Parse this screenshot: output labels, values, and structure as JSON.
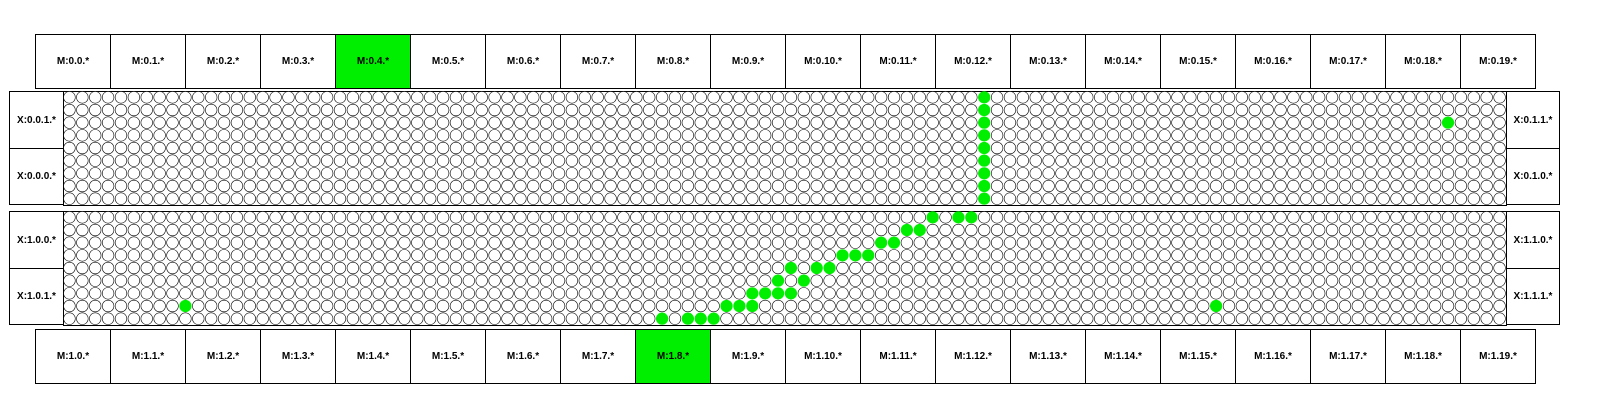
{
  "colors": {
    "active": "#00ee00",
    "dot_stroke": "#000000",
    "line": "#000000"
  },
  "top_modules": [
    "M:0.0.*",
    "M:0.1.*",
    "M:0.2.*",
    "M:0.3.*",
    "M:0.4.*",
    "M:0.5.*",
    "M:0.6.*",
    "M:0.7.*",
    "M:0.8.*",
    "M:0.9.*",
    "M:0.10.*",
    "M:0.11.*",
    "M:0.12.*",
    "M:0.13.*",
    "M:0.14.*",
    "M:0.15.*",
    "M:0.16.*",
    "M:0.17.*",
    "M:0.18.*",
    "M:0.19.*"
  ],
  "top_active": [
    4
  ],
  "bottom_modules": [
    "M:1.0.*",
    "M:1.1.*",
    "M:1.2.*",
    "M:1.3.*",
    "M:1.4.*",
    "M:1.5.*",
    "M:1.6.*",
    "M:1.7.*",
    "M:1.8.*",
    "M:1.9.*",
    "M:1.10.*",
    "M:1.11.*",
    "M:1.12.*",
    "M:1.13.*",
    "M:1.14.*",
    "M:1.15.*",
    "M:1.16.*",
    "M:1.17.*",
    "M:1.18.*",
    "M:1.19.*"
  ],
  "bottom_active": [
    8
  ],
  "panels": [
    {
      "left": [
        "X:0.0.1.*",
        "X:0.0.0.*"
      ],
      "right": [
        "X:0.1.1.*",
        "X:0.1.0.*"
      ]
    },
    {
      "left": [
        "X:1.0.0.*",
        "X:1.0.1.*"
      ],
      "right": [
        "X:1.1.0.*",
        "X:1.1.1.*"
      ]
    }
  ],
  "grid": {
    "cols": 112,
    "rows": 9
  },
  "hits": [
    {
      "panel": 0,
      "col": 71,
      "row": 0
    },
    {
      "panel": 0,
      "col": 71,
      "row": 1
    },
    {
      "panel": 0,
      "col": 71,
      "row": 2
    },
    {
      "panel": 0,
      "col": 71,
      "row": 3
    },
    {
      "panel": 0,
      "col": 71,
      "row": 4
    },
    {
      "panel": 0,
      "col": 71,
      "row": 5
    },
    {
      "panel": 0,
      "col": 71,
      "row": 6
    },
    {
      "panel": 0,
      "col": 71,
      "row": 7
    },
    {
      "panel": 0,
      "col": 71,
      "row": 8
    },
    {
      "panel": 0,
      "col": 107,
      "row": 2
    },
    {
      "panel": 1,
      "col": 67,
      "row": 0
    },
    {
      "panel": 1,
      "col": 69,
      "row": 0
    },
    {
      "panel": 1,
      "col": 70,
      "row": 0
    },
    {
      "panel": 1,
      "col": 65,
      "row": 1
    },
    {
      "panel": 1,
      "col": 66,
      "row": 1
    },
    {
      "panel": 1,
      "col": 63,
      "row": 2
    },
    {
      "panel": 1,
      "col": 64,
      "row": 2
    },
    {
      "panel": 1,
      "col": 60,
      "row": 3
    },
    {
      "panel": 1,
      "col": 61,
      "row": 3
    },
    {
      "panel": 1,
      "col": 62,
      "row": 3
    },
    {
      "panel": 1,
      "col": 56,
      "row": 4
    },
    {
      "panel": 1,
      "col": 58,
      "row": 4
    },
    {
      "panel": 1,
      "col": 59,
      "row": 4
    },
    {
      "panel": 1,
      "col": 55,
      "row": 5
    },
    {
      "panel": 1,
      "col": 57,
      "row": 5
    },
    {
      "panel": 1,
      "col": 53,
      "row": 6
    },
    {
      "panel": 1,
      "col": 54,
      "row": 6
    },
    {
      "panel": 1,
      "col": 55,
      "row": 6
    },
    {
      "panel": 1,
      "col": 56,
      "row": 6
    },
    {
      "panel": 1,
      "col": 51,
      "row": 7
    },
    {
      "panel": 1,
      "col": 52,
      "row": 7
    },
    {
      "panel": 1,
      "col": 53,
      "row": 7
    },
    {
      "panel": 1,
      "col": 9,
      "row": 7
    },
    {
      "panel": 1,
      "col": 89,
      "row": 7
    },
    {
      "panel": 1,
      "col": 46,
      "row": 8
    },
    {
      "panel": 1,
      "col": 48,
      "row": 8
    },
    {
      "panel": 1,
      "col": 49,
      "row": 8
    },
    {
      "panel": 1,
      "col": 50,
      "row": 8
    }
  ]
}
